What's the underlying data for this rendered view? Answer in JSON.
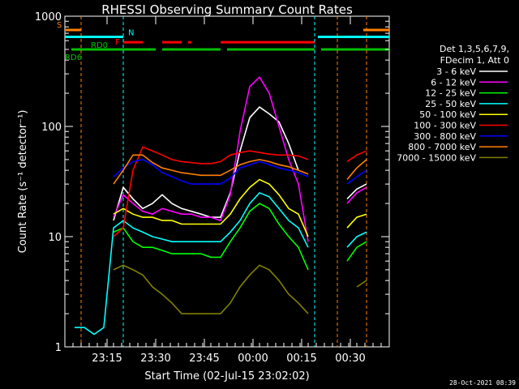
{
  "chart_data": {
    "type": "line",
    "title": "RHESSI Observing Summary Count Rates",
    "xlabel": "Start Time (02-Jul-15 23:02:02)",
    "ylabel": "Count Rate (s⁻¹ detector⁻¹)",
    "yscale": "log",
    "ylim": [
      1,
      1000
    ],
    "xlim_minutes": [
      0,
      100
    ],
    "y_ticks": [
      {
        "value": 1,
        "label": "1"
      },
      {
        "value": 10,
        "label": "10"
      },
      {
        "value": 100,
        "label": "100"
      },
      {
        "value": 1000,
        "label": "1000"
      }
    ],
    "x_ticks": [
      {
        "value": 13,
        "label": "23:15"
      },
      {
        "value": 28,
        "label": "23:30"
      },
      {
        "value": 43,
        "label": "23:45"
      },
      {
        "value": 58,
        "label": "00:00"
      },
      {
        "value": 73,
        "label": "00:15"
      },
      {
        "value": 88,
        "label": "00:30"
      }
    ],
    "legend_header": [
      "Det 1,3,5,6,7,9,",
      "FDecim 1, Att 0"
    ],
    "legend_position": "right",
    "footer": "28-Oct-2021 08:39",
    "x": [
      3,
      6,
      9,
      12,
      15,
      18,
      21,
      24,
      27,
      30,
      33,
      36,
      39,
      42,
      45,
      48,
      51,
      54,
      57,
      60,
      63,
      66,
      69,
      72,
      75,
      78,
      81,
      84,
      87,
      90,
      93
    ],
    "series": [
      {
        "name": "3 - 6 keV",
        "color": "#ffffff",
        "values": [
          null,
          null,
          null,
          null,
          14,
          28,
          22,
          18,
          20,
          24,
          20,
          18,
          17,
          16,
          15,
          15,
          25,
          60,
          120,
          150,
          130,
          110,
          70,
          40,
          null,
          null,
          null,
          null,
          22,
          27,
          30
        ]
      },
      {
        "name": "6 - 12 keV",
        "color": "#ff00ff",
        "values": [
          null,
          null,
          null,
          null,
          15,
          24,
          20,
          17,
          16,
          18,
          17,
          16,
          16,
          15,
          15,
          14,
          24,
          90,
          230,
          280,
          200,
          100,
          50,
          30,
          9,
          null,
          null,
          null,
          20,
          25,
          28
        ]
      },
      {
        "name": "12 - 25 keV",
        "color": "#00ff00",
        "values": [
          null,
          null,
          null,
          null,
          11,
          12,
          9,
          8,
          8,
          7.5,
          7,
          7,
          7,
          7,
          6.5,
          6.5,
          9,
          12,
          17,
          20,
          18,
          13,
          10,
          8,
          5,
          null,
          null,
          null,
          6,
          8,
          9
        ]
      },
      {
        "name": "25 - 50 keV",
        "color": "#00ffff",
        "values": [
          1.5,
          1.5,
          1.3,
          1.5,
          12,
          14,
          12,
          11,
          10,
          9.5,
          9,
          9,
          9,
          9,
          9,
          9,
          11,
          14,
          20,
          25,
          23,
          18,
          14,
          12,
          8,
          null,
          null,
          null,
          8,
          10,
          11
        ]
      },
      {
        "name": "50 - 100 keV",
        "color": "#ffff00",
        "values": [
          null,
          null,
          null,
          null,
          16,
          18,
          16,
          15,
          15,
          14,
          14,
          13,
          13,
          13,
          13,
          13,
          16,
          22,
          28,
          33,
          30,
          24,
          18,
          16,
          10,
          null,
          null,
          null,
          12,
          15,
          16
        ]
      },
      {
        "name": "100 - 300 keV",
        "color": "#ff0000",
        "values": [
          null,
          null,
          null,
          null,
          10,
          12,
          40,
          65,
          60,
          55,
          50,
          48,
          47,
          46,
          46,
          48,
          55,
          58,
          60,
          58,
          56,
          55,
          55,
          54,
          50,
          null,
          null,
          null,
          48,
          55,
          60
        ]
      },
      {
        "name": "300 - 800 keV",
        "color": "#0000ff",
        "values": [
          null,
          null,
          null,
          null,
          35,
          42,
          48,
          50,
          45,
          38,
          35,
          32,
          30,
          30,
          30,
          30,
          34,
          42,
          45,
          48,
          45,
          42,
          40,
          38,
          35,
          null,
          null,
          null,
          30,
          35,
          40
        ]
      },
      {
        "name": "800 - 7000 keV",
        "color": "#ff8000",
        "values": [
          null,
          null,
          null,
          null,
          30,
          40,
          55,
          55,
          47,
          42,
          40,
          38,
          37,
          36,
          36,
          36,
          40,
          45,
          48,
          50,
          48,
          45,
          43,
          40,
          37,
          null,
          null,
          null,
          33,
          42,
          50
        ]
      },
      {
        "name": "7000 - 15000 keV",
        "color": "#808000",
        "values": [
          null,
          null,
          null,
          null,
          5,
          5.5,
          5,
          4.5,
          3.5,
          3,
          2.5,
          2,
          2,
          2,
          2,
          2,
          2.5,
          3.5,
          4.5,
          5.5,
          5,
          4,
          3,
          2.5,
          2,
          null,
          null,
          null,
          null,
          3.5,
          4
        ]
      }
    ],
    "annotations": [
      {
        "text": "S",
        "color": "#ff8000"
      },
      {
        "text": "N",
        "color": "#00ffff"
      },
      {
        "text": "F",
        "color": "#ff0000"
      },
      {
        "text": "RD0",
        "color": "#00c000"
      },
      {
        "text": "RD6",
        "color": "#00c000"
      }
    ],
    "flag_bars": [
      {
        "color": "#ff8000",
        "y": 750,
        "segments": [
          [
            0,
            5
          ],
          [
            92,
            100
          ]
        ]
      },
      {
        "color": "#00ffff",
        "y": 650,
        "segments": [
          [
            0,
            18
          ],
          [
            78,
            100
          ]
        ]
      },
      {
        "color": "#ff0000",
        "y": 580,
        "segments": [
          [
            18,
            24
          ],
          [
            30,
            36
          ],
          [
            38,
            39
          ],
          [
            48,
            77
          ]
        ]
      },
      {
        "color": "#00c000",
        "y": 500,
        "segments": [
          [
            2,
            28
          ],
          [
            30,
            48
          ],
          [
            50,
            77
          ],
          [
            79,
            100
          ]
        ]
      }
    ],
    "vlines": [
      {
        "x": 5,
        "color": "#ff8000"
      },
      {
        "x": 18,
        "color": "#00ffff"
      },
      {
        "x": 77,
        "color": "#00ffff"
      },
      {
        "x": 84,
        "color": "#ff8000"
      },
      {
        "x": 93,
        "color": "#ff8000"
      }
    ]
  }
}
